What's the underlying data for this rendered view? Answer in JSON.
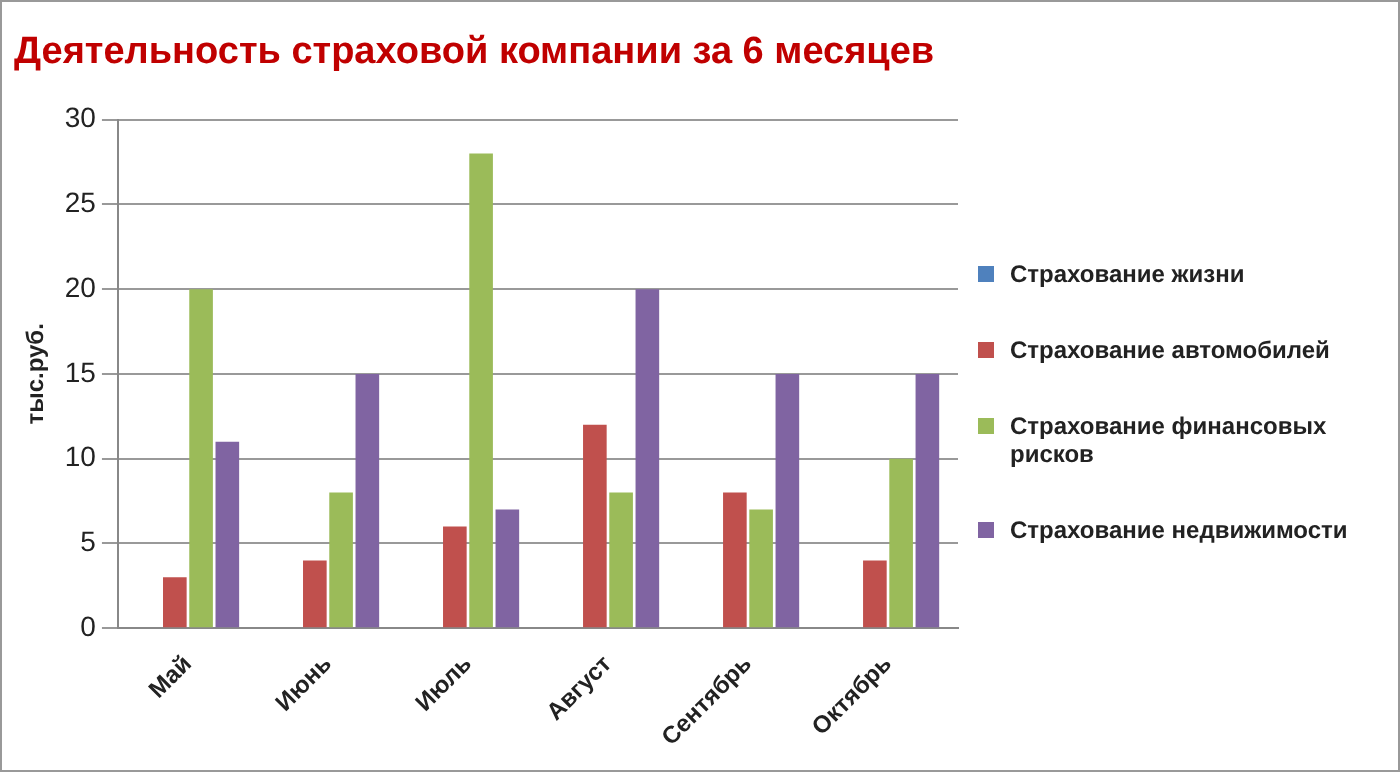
{
  "chart_data": {
    "type": "bar",
    "title": "Деятельность страховой компании за 6 месяцев",
    "ylabel": "тыс.руб.",
    "categories": [
      "Май",
      "Июнь",
      "Июль",
      "Август",
      "Сентябрь",
      "Октябрь"
    ],
    "series": [
      {
        "name": "Страхование жизни",
        "color": "#4f81bd",
        "values": [
          0,
          0,
          0,
          0,
          null,
          null
        ]
      },
      {
        "name": "Страхование автомобилей",
        "color": "#c0504d",
        "values": [
          3,
          4,
          6,
          12,
          8,
          4
        ]
      },
      {
        "name": "Страхование финансовых рисков",
        "color": "#9bbb59",
        "values": [
          20,
          8,
          28,
          8,
          7,
          10
        ]
      },
      {
        "name": "Страхование недвижимости",
        "color": "#8064a2",
        "values": [
          11,
          15,
          7,
          20,
          15,
          15
        ]
      }
    ],
    "ylim": [
      0,
      30
    ],
    "yticks": [
      0,
      5,
      10,
      15,
      20,
      25,
      30
    ],
    "grid": "y",
    "legend": "right"
  }
}
